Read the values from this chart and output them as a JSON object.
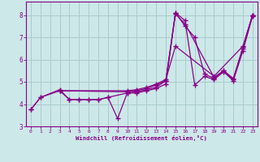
{
  "xlabel": "Windchill (Refroidissement éolien,°C)",
  "background_color": "#cce8e8",
  "line_color": "#880088",
  "grid_color": "#aacccc",
  "xlim": [
    -0.5,
    23.5
  ],
  "ylim": [
    3.0,
    8.6
  ],
  "yticks": [
    3,
    4,
    5,
    6,
    7,
    8
  ],
  "xticks": [
    0,
    1,
    2,
    3,
    4,
    5,
    6,
    7,
    8,
    9,
    10,
    11,
    12,
    13,
    14,
    15,
    16,
    17,
    18,
    19,
    20,
    21,
    22,
    23
  ],
  "lines": [
    {
      "x": [
        0,
        1,
        3,
        4,
        5,
        6,
        7,
        8,
        9,
        10,
        11,
        12,
        13,
        14,
        15,
        16,
        17,
        18,
        19,
        20,
        21,
        22,
        23
      ],
      "y": [
        3.75,
        4.3,
        4.6,
        4.2,
        4.2,
        4.2,
        4.2,
        4.3,
        3.35,
        4.5,
        4.5,
        4.6,
        4.7,
        4.9,
        8.1,
        7.5,
        7.0,
        5.35,
        5.15,
        5.5,
        5.1,
        6.5,
        8.0
      ]
    },
    {
      "x": [
        0,
        1,
        3,
        4,
        5,
        6,
        7,
        8,
        10,
        11,
        12,
        13,
        14,
        15,
        16,
        17,
        18,
        19,
        20,
        21,
        22,
        23
      ],
      "y": [
        3.75,
        4.3,
        4.65,
        4.2,
        4.2,
        4.2,
        4.2,
        4.3,
        4.5,
        4.55,
        4.65,
        4.75,
        5.05,
        8.1,
        7.75,
        4.85,
        5.25,
        5.1,
        5.45,
        5.05,
        6.4,
        7.95
      ]
    },
    {
      "x": [
        3,
        10,
        11,
        12,
        13,
        14,
        15,
        16,
        19,
        20,
        21,
        22,
        23
      ],
      "y": [
        4.6,
        4.55,
        4.6,
        4.7,
        4.85,
        5.05,
        8.05,
        7.6,
        5.2,
        5.5,
        5.15,
        6.55,
        8.0
      ]
    },
    {
      "x": [
        3,
        10,
        11,
        12,
        13,
        14,
        15,
        19,
        22,
        23
      ],
      "y": [
        4.6,
        4.6,
        4.65,
        4.75,
        4.9,
        5.1,
        6.6,
        5.25,
        6.6,
        8.0
      ]
    }
  ]
}
